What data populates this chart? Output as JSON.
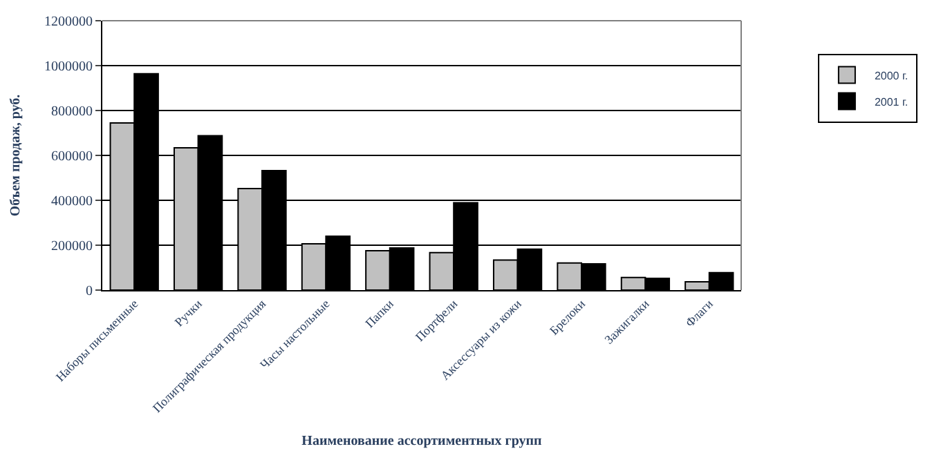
{
  "chart_data": {
    "type": "bar",
    "xlabel": "Наименование ассортиментных групп",
    "ylabel": "Объем продаж, руб.",
    "categories": [
      "Наборы письменные",
      "Ручки",
      "Полиграфическая продукция",
      "Часы настольные",
      "Папки",
      "Портфели",
      "Аксессуары из кожи",
      "Брелоки",
      "Зажигалки",
      "Флаги"
    ],
    "series": [
      {
        "name": "2000 г.",
        "color": "#c0c0c0",
        "values": [
          745000,
          634000,
          452000,
          206000,
          175000,
          167000,
          134000,
          121000,
          56000,
          37000
        ]
      },
      {
        "name": "2001 г.",
        "color": "#000000",
        "values": [
          964000,
          688000,
          532000,
          240000,
          188000,
          389000,
          182000,
          117000,
          52000,
          78000
        ]
      }
    ],
    "ylim": [
      0,
      1200000
    ],
    "yticks": [
      {
        "value": 0,
        "label": "0"
      },
      {
        "value": 200000,
        "label": "200000"
      },
      {
        "value": 400000,
        "label": "400000"
      },
      {
        "value": 600000,
        "label": "600000"
      },
      {
        "value": 800000,
        "label": "800000"
      },
      {
        "value": 1000000,
        "label": "1000000"
      },
      {
        "value": 1200000,
        "label": "1200000"
      }
    ],
    "grid": "y",
    "legend": "right"
  }
}
